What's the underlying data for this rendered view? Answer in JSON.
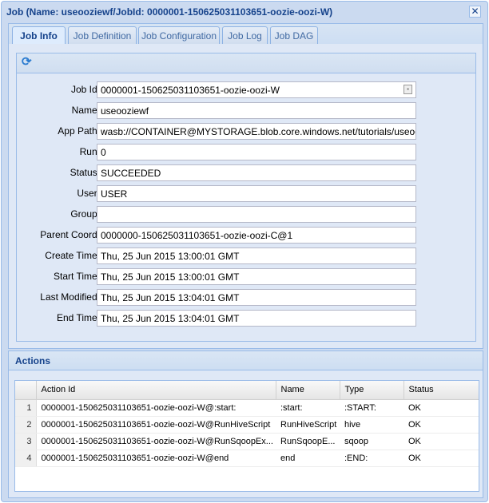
{
  "window": {
    "title": "Job (Name: useooziewf/JobId: 0000001-150625031103651-oozie-oozi-W)",
    "close_icon": "close-icon"
  },
  "tabs": [
    {
      "label": "Job Info",
      "active": true
    },
    {
      "label": "Job Definition"
    },
    {
      "label": "Job Configuration"
    },
    {
      "label": "Job Log"
    },
    {
      "label": "Job DAG"
    }
  ],
  "toolbar": {
    "refresh_icon": "refresh-icon"
  },
  "fields": [
    {
      "label": "Job Id:",
      "value": "0000001-150625031103651-oozie-oozi-W"
    },
    {
      "label": "Name:",
      "value": "useooziewf"
    },
    {
      "label": "App Path:",
      "value": "wasb://CONTAINER@MYSTORAGE.blob.core.windows.net/tutorials/useoozie"
    },
    {
      "label": "Run:",
      "value": "0"
    },
    {
      "label": "Status:",
      "value": "SUCCEEDED"
    },
    {
      "label": "User:",
      "value": "USER"
    },
    {
      "label": "Group:",
      "value": ""
    },
    {
      "label": "Parent Coord:",
      "value": "0000000-150625031103651-oozie-oozi-C@1"
    },
    {
      "label": "Create Time:",
      "value": "Thu, 25 Jun 2015 13:00:01 GMT"
    },
    {
      "label": "Start Time:",
      "value": "Thu, 25 Jun 2015 13:00:01 GMT"
    },
    {
      "label": "Last Modified:",
      "value": "Thu, 25 Jun 2015 13:04:01 GMT"
    },
    {
      "label": "End Time:",
      "value": "Thu, 25 Jun 2015 13:04:01 GMT"
    }
  ],
  "actions": {
    "title": "Actions",
    "columns": [
      "Action Id",
      "Name",
      "Type",
      "Status"
    ],
    "rows": [
      {
        "n": "1",
        "id": "0000001-150625031103651-oozie-oozi-W@:start:",
        "name": ":start:",
        "type": ":START:",
        "status": "OK"
      },
      {
        "n": "2",
        "id": "0000001-150625031103651-oozie-oozi-W@RunHiveScript",
        "name": "RunHiveScript",
        "type": "hive",
        "status": "OK"
      },
      {
        "n": "3",
        "id": "0000001-150625031103651-oozie-oozi-W@RunSqoopEx...",
        "name": "RunSqoopE...",
        "type": "sqoop",
        "status": "OK"
      },
      {
        "n": "4",
        "id": "0000001-150625031103651-oozie-oozi-W@end",
        "name": "end",
        "type": ":END:",
        "status": "OK"
      }
    ]
  }
}
